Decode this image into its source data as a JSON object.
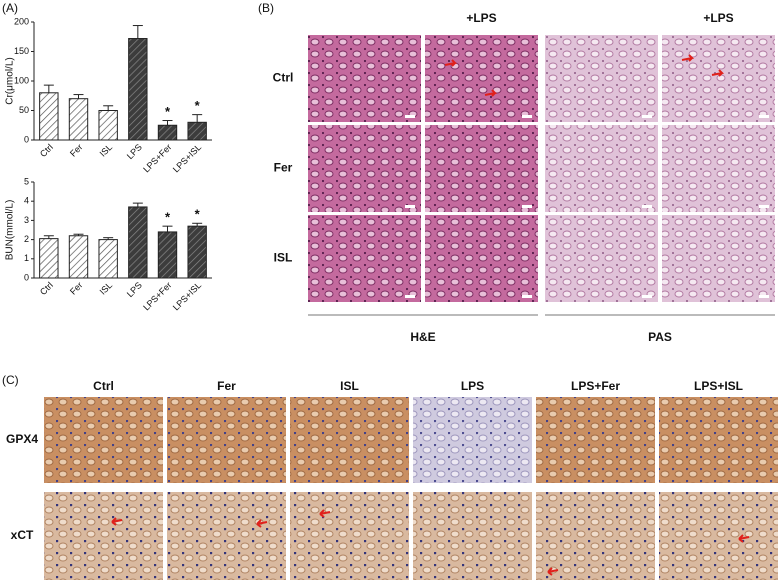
{
  "panels": {
    "a": "(A)",
    "b": "(B)",
    "c": "(C)"
  },
  "chart_data": [
    {
      "type": "bar",
      "y_label": "Cr(μmol/L)",
      "categories": [
        "Ctrl",
        "Fer",
        "ISL",
        "LPS",
        "LPS+Fer",
        "LPS+ISL"
      ],
      "values": [
        80,
        70,
        50,
        172,
        25,
        30
      ],
      "errors": [
        13,
        7,
        8,
        22,
        8,
        13
      ],
      "colors": [
        "#ffffff",
        "#ffffff",
        "#ffffff",
        "#3c3c3c",
        "#3c3c3c",
        "#3c3c3c"
      ],
      "ylim": [
        0,
        200
      ],
      "yticks": [
        0,
        50,
        100,
        150,
        200
      ],
      "annotations": [
        {
          "category": "LPS+Fer",
          "text": "*"
        },
        {
          "category": "LPS+ISL",
          "text": "*"
        }
      ]
    },
    {
      "type": "bar",
      "y_label": "BUN(mmol/L)",
      "categories": [
        "Ctrl",
        "Fer",
        "ISL",
        "LPS",
        "LPS+Fer",
        "LPS+ISL"
      ],
      "values": [
        2.05,
        2.2,
        2.0,
        3.7,
        2.4,
        2.7
      ],
      "errors": [
        0.15,
        0.08,
        0.1,
        0.2,
        0.3,
        0.15
      ],
      "colors": [
        "#ffffff",
        "#ffffff",
        "#ffffff",
        "#3c3c3c",
        "#3c3c3c",
        "#3c3c3c"
      ],
      "ylim": [
        0,
        5
      ],
      "yticks": [
        0,
        1,
        2,
        3,
        4,
        5
      ],
      "annotations": [
        {
          "category": "LPS+Fer",
          "text": "*"
        },
        {
          "category": "LPS+ISL",
          "text": "*"
        }
      ]
    }
  ],
  "he_pas": {
    "column_headers": [
      "+LPS",
      "+LPS"
    ],
    "row_labels": [
      "Ctrl",
      "Fer",
      "ISL"
    ],
    "stains": [
      "H&E",
      "PAS"
    ]
  },
  "ihc": {
    "column_headers": [
      "Ctrl",
      "Fer",
      "ISL",
      "LPS",
      "LPS+Fer",
      "LPS+ISL"
    ],
    "row_labels": [
      "GPX4",
      "xCT"
    ]
  }
}
